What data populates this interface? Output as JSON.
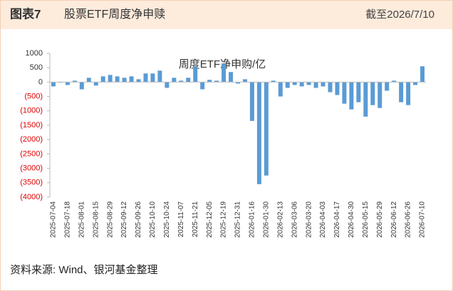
{
  "header": {
    "label": "图表7",
    "title": "股票ETF周度净申赎",
    "date": "截至2026/7/10"
  },
  "chart_data": {
    "type": "bar",
    "title": "周度ETF净申购/亿",
    "color": "#5a9bd5",
    "categories": [
      "2025-07-04",
      null,
      "2025-07-18",
      null,
      "2025-08-01",
      null,
      "2025-08-15",
      null,
      "2025-08-29",
      null,
      "2025-09-12",
      null,
      "2025-09-26",
      null,
      "2025-10-10",
      null,
      "2025-10-24",
      null,
      "2025-11-07",
      null,
      "2025-11-21",
      null,
      "2025-12-05",
      null,
      "2025-12-19",
      null,
      "2025-12-31",
      null,
      "2026-01-16",
      null,
      "2026-01-30",
      null,
      "2026-02-13",
      null,
      "2026-03-06",
      null,
      "2026-03-20",
      null,
      "2026-04-03",
      null,
      "2026-04-17",
      null,
      "2026-04-30",
      null,
      "2026-05-15",
      null,
      "2026-05-29",
      null,
      "2026-06-12",
      null,
      "2026-06-26",
      null,
      "2026-07-10"
    ],
    "values": [
      -150,
      -20,
      -100,
      50,
      -250,
      150,
      -120,
      200,
      250,
      200,
      150,
      200,
      100,
      300,
      300,
      400,
      -200,
      150,
      50,
      150,
      550,
      -250,
      80,
      50,
      650,
      350,
      -50,
      100,
      -1350,
      -3550,
      -3250,
      50,
      -500,
      -200,
      -100,
      -150,
      -100,
      -200,
      -150,
      -350,
      -450,
      -750,
      -950,
      -700,
      -1200,
      -800,
      -900,
      -300,
      50,
      -700,
      -800,
      -100,
      550
    ],
    "ylim": [
      -4000,
      1000
    ],
    "yticks": [
      1000,
      500,
      0,
      {
        "value": -500,
        "label": "(500)"
      },
      {
        "value": -1000,
        "label": "(1000)"
      },
      {
        "value": -1500,
        "label": "(1500)"
      },
      {
        "value": -2000,
        "label": "(2000)"
      },
      {
        "value": -2500,
        "label": "(2500)"
      },
      {
        "value": -3000,
        "label": "(3000)"
      },
      {
        "value": -3500,
        "label": "(3500)"
      },
      {
        "value": -4000,
        "label": "(4000)"
      }
    ],
    "grid": false
  },
  "source": "资料来源: Wind、银河基金整理"
}
